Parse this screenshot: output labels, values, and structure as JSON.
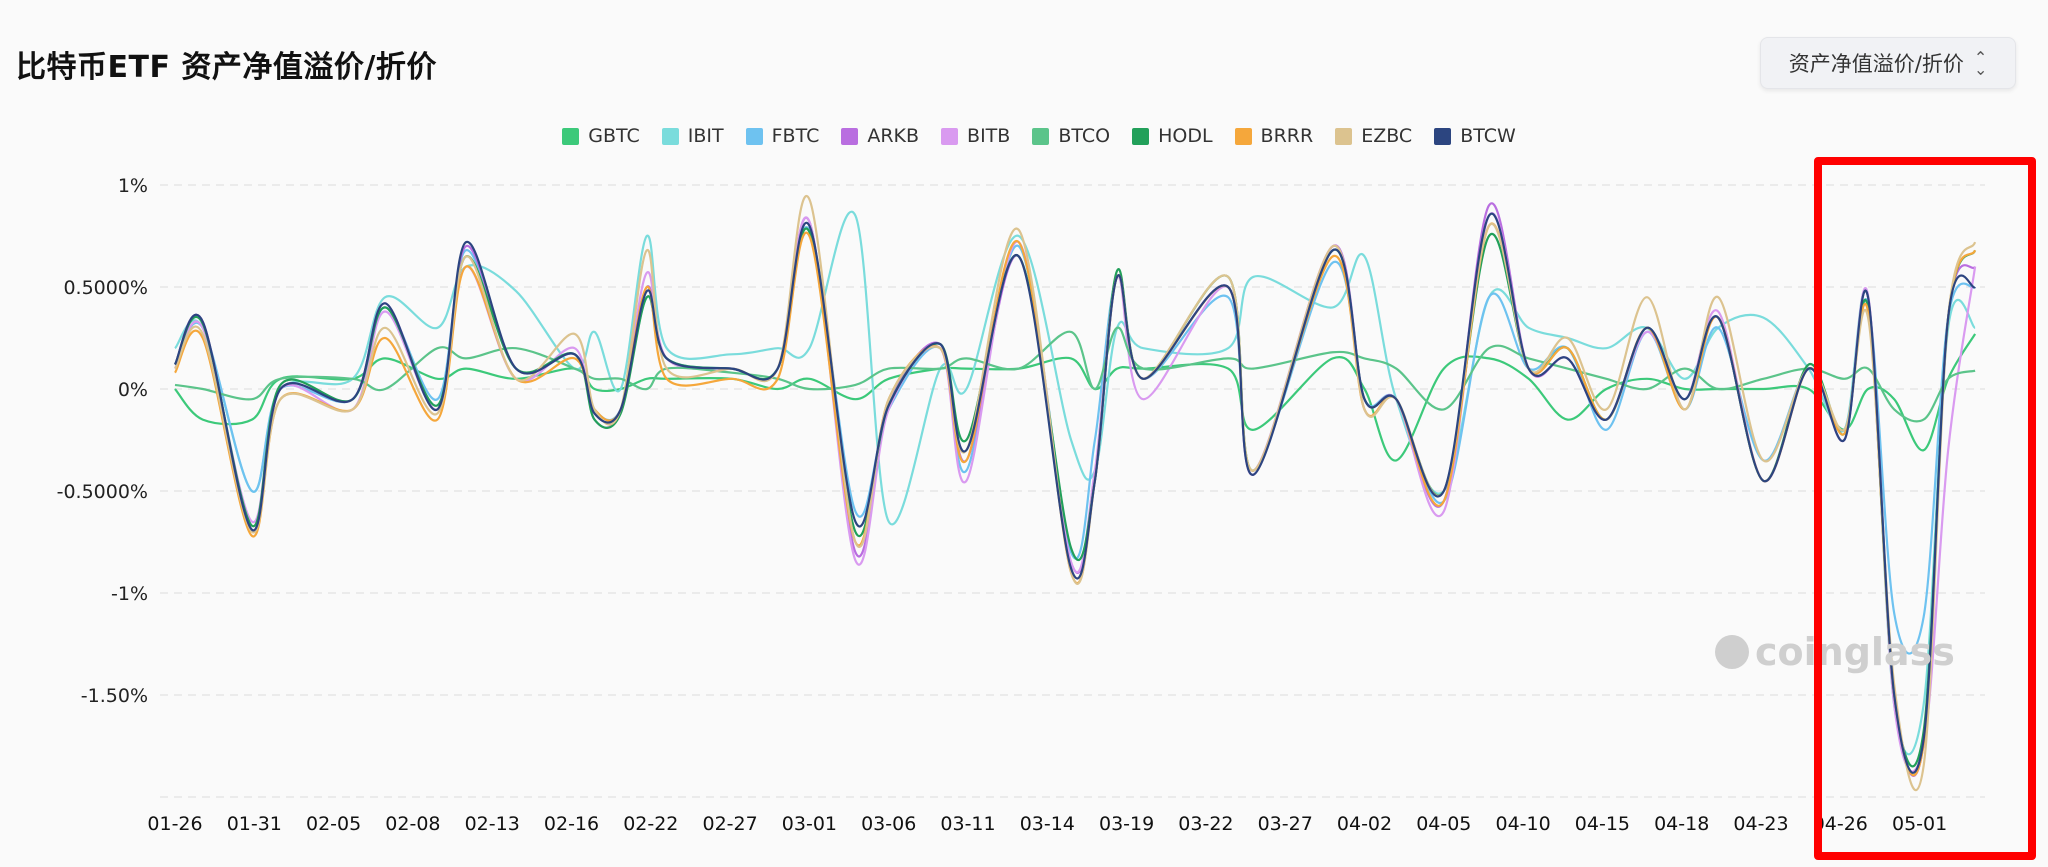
{
  "header": {
    "title": "比特币ETF 资产净值溢价/折价",
    "dropdown_label": "资产净值溢价/折价"
  },
  "watermark": "coinglass",
  "chart_data": {
    "type": "line",
    "title": "比特币ETF 资产净值溢价/折价",
    "xlabel": "",
    "ylabel": "",
    "ylim": [
      -2,
      1
    ],
    "y_ticks": [
      1,
      0.5,
      0,
      -0.5,
      -1,
      -1.5
    ],
    "y_tick_labels": [
      "1%",
      "0.5000%",
      "0%",
      "-0.5000%",
      "-1%",
      "-1.50%"
    ],
    "x_tick_labels": [
      "01-26",
      "01-31",
      "02-05",
      "02-08",
      "02-13",
      "02-16",
      "02-22",
      "02-27",
      "03-01",
      "03-06",
      "03-11",
      "03-14",
      "03-19",
      "03-22",
      "03-27",
      "04-02",
      "04-05",
      "04-10",
      "04-15",
      "04-18",
      "04-23",
      "04-26",
      "05-01"
    ],
    "grid": true,
    "legend_placement": "top-center",
    "x": [
      0,
      0.35,
      0.97,
      1.33,
      2.24,
      2.65,
      3.31,
      3.67,
      4.3,
      5.04,
      5.29,
      5.62,
      5.95,
      6.2,
      7.02,
      7.6,
      8.0,
      8.58,
      9.0,
      9.65,
      9.98,
      10.64,
      11.3,
      11.6,
      11.88,
      12.21,
      13.28,
      13.6,
      14.6,
      15.0,
      15.4,
      16.0,
      16.57,
      17.07,
      17.56,
      18.05,
      18.56,
      19.04,
      19.46,
      20.03,
      20.6,
      21.05,
      21.35,
      21.68,
      22.05,
      22.36,
      22.7
    ],
    "series": [
      {
        "name": "GBTC",
        "color": "#3cc97a",
        "values": [
          0.0,
          -0.15,
          -0.15,
          0.05,
          0.05,
          0.15,
          0.05,
          0.1,
          0.05,
          0.1,
          0.0,
          0.0,
          0.05,
          0.05,
          0.05,
          0.0,
          0.05,
          -0.05,
          0.05,
          0.1,
          0.1,
          0.1,
          0.15,
          0.0,
          0.1,
          0.1,
          0.1,
          -0.2,
          0.15,
          0.0,
          -0.35,
          0.1,
          0.15,
          0.05,
          -0.15,
          0.0,
          0.05,
          0.0,
          0.0,
          0.0,
          0.0,
          -0.2,
          0.0,
          -0.05,
          -0.3,
          0.05,
          0.27
        ]
      },
      {
        "name": "IBIT",
        "color": "#7adcdc",
        "values": [
          0.2,
          0.3,
          -0.5,
          0.0,
          0.05,
          0.45,
          0.3,
          0.6,
          0.48,
          0.1,
          0.28,
          0.0,
          0.75,
          0.2,
          0.17,
          0.2,
          0.2,
          0.85,
          -0.65,
          0.1,
          0.0,
          0.75,
          -0.25,
          -0.4,
          0.3,
          0.2,
          0.2,
          0.55,
          0.4,
          0.65,
          -0.05,
          -0.5,
          0.45,
          0.3,
          0.25,
          0.2,
          0.3,
          0.05,
          0.3,
          0.35,
          0.1,
          -0.2,
          0.45,
          -1.55,
          -1.55,
          0.3,
          0.3
        ]
      },
      {
        "name": "FBTC",
        "color": "#6ec2f0",
        "values": [
          0.12,
          0.3,
          -0.5,
          0.0,
          -0.05,
          0.4,
          -0.05,
          0.68,
          0.1,
          0.17,
          -0.1,
          -0.1,
          0.45,
          0.15,
          0.1,
          0.1,
          0.78,
          -0.6,
          -0.1,
          0.2,
          -0.4,
          0.7,
          -0.8,
          -0.25,
          0.55,
          0.05,
          0.45,
          -0.4,
          0.62,
          -0.05,
          -0.05,
          -0.55,
          0.45,
          0.1,
          0.2,
          -0.2,
          0.28,
          -0.1,
          0.3,
          -0.35,
          0.1,
          -0.2,
          0.42,
          -1.1,
          -1.12,
          0.35,
          0.5
        ]
      },
      {
        "name": "ARKB",
        "color": "#b96ee0",
        "values": [
          0.12,
          0.33,
          -0.69,
          0.0,
          -0.05,
          0.42,
          -0.1,
          0.7,
          0.1,
          0.17,
          -0.12,
          -0.1,
          0.5,
          0.15,
          0.1,
          0.1,
          0.82,
          -0.8,
          -0.08,
          0.22,
          -0.35,
          0.65,
          -0.85,
          -0.45,
          0.55,
          0.05,
          0.5,
          -0.42,
          0.7,
          -0.05,
          -0.05,
          -0.55,
          0.9,
          0.1,
          0.15,
          -0.15,
          0.3,
          -0.05,
          0.35,
          -0.45,
          0.1,
          -0.25,
          0.45,
          -1.5,
          -1.74,
          0.35,
          0.6
        ]
      },
      {
        "name": "BITB",
        "color": "#d99af0",
        "values": [
          0.1,
          0.3,
          -0.65,
          0.0,
          -0.1,
          0.38,
          -0.1,
          0.6,
          0.05,
          0.2,
          -0.15,
          -0.1,
          0.57,
          0.15,
          0.1,
          0.1,
          0.82,
          -0.84,
          -0.1,
          0.2,
          -0.45,
          0.72,
          -0.85,
          -0.4,
          0.55,
          -0.05,
          0.5,
          -0.4,
          0.7,
          -0.1,
          -0.05,
          -0.6,
          0.85,
          0.1,
          0.15,
          -0.15,
          0.28,
          -0.05,
          0.38,
          -0.45,
          0.1,
          -0.25,
          0.46,
          -1.55,
          -1.75,
          -0.3,
          0.6
        ]
      },
      {
        "name": "BTCO",
        "color": "#5bc48a",
        "values": [
          0.02,
          0.0,
          -0.05,
          0.05,
          0.05,
          0.0,
          0.2,
          0.15,
          0.2,
          0.1,
          0.05,
          0.05,
          0.0,
          0.1,
          0.08,
          0.05,
          0.0,
          0.02,
          0.1,
          0.1,
          0.15,
          0.1,
          0.28,
          0.0,
          0.3,
          0.1,
          0.15,
          0.1,
          0.18,
          0.15,
          0.1,
          -0.1,
          0.2,
          0.15,
          0.1,
          0.05,
          0.0,
          0.1,
          0.0,
          0.05,
          0.1,
          0.05,
          0.1,
          -0.1,
          -0.15,
          0.05,
          0.09
        ]
      },
      {
        "name": "HODL",
        "color": "#22a05a",
        "values": [
          0.12,
          0.32,
          -0.67,
          0.02,
          -0.05,
          0.4,
          -0.08,
          0.65,
          0.1,
          0.17,
          -0.15,
          -0.12,
          0.45,
          0.15,
          0.1,
          0.1,
          0.77,
          -0.7,
          -0.08,
          0.22,
          -0.25,
          0.65,
          -0.78,
          -0.45,
          0.58,
          0.05,
          0.55,
          -0.4,
          0.68,
          -0.05,
          -0.05,
          -0.5,
          0.75,
          0.1,
          0.2,
          -0.15,
          0.3,
          -0.05,
          0.35,
          -0.45,
          0.12,
          -0.22,
          0.4,
          -1.5,
          -1.68,
          0.35,
          0.68
        ]
      },
      {
        "name": "BRRR",
        "color": "#f5a73b",
        "values": [
          0.08,
          0.25,
          -0.72,
          -0.05,
          -0.1,
          0.25,
          -0.15,
          0.6,
          0.05,
          0.15,
          -0.1,
          -0.1,
          0.5,
          0.05,
          0.05,
          0.05,
          0.75,
          -0.75,
          -0.05,
          0.2,
          -0.35,
          0.72,
          -0.9,
          -0.45,
          0.55,
          0.05,
          0.5,
          -0.4,
          0.65,
          -0.1,
          -0.05,
          -0.55,
          0.8,
          0.1,
          0.2,
          -0.15,
          0.3,
          -0.1,
          0.35,
          -0.45,
          0.1,
          -0.22,
          0.38,
          -1.5,
          -1.74,
          0.35,
          0.68
        ]
      },
      {
        "name": "EZBC",
        "color": "#dcc38f",
        "values": [
          0.1,
          0.27,
          -0.7,
          -0.05,
          -0.1,
          0.3,
          -0.12,
          0.65,
          0.05,
          0.27,
          -0.1,
          -0.1,
          0.68,
          0.1,
          0.1,
          0.1,
          0.93,
          -0.75,
          -0.05,
          0.2,
          -0.3,
          0.78,
          -0.9,
          -0.45,
          0.55,
          0.05,
          0.55,
          -0.4,
          0.7,
          -0.1,
          -0.05,
          -0.5,
          0.8,
          0.1,
          0.25,
          -0.1,
          0.45,
          -0.1,
          0.45,
          -0.35,
          0.1,
          -0.2,
          0.35,
          -1.45,
          -1.85,
          0.35,
          0.72
        ]
      },
      {
        "name": "BTCW",
        "color": "#2c4580",
        "values": [
          0.12,
          0.33,
          -0.69,
          0.0,
          -0.05,
          0.42,
          -0.1,
          0.72,
          0.1,
          0.17,
          -0.12,
          -0.1,
          0.48,
          0.15,
          0.1,
          0.1,
          0.8,
          -0.65,
          -0.08,
          0.22,
          -0.3,
          0.65,
          -0.88,
          -0.45,
          0.55,
          0.05,
          0.5,
          -0.42,
          0.68,
          -0.05,
          -0.05,
          -0.5,
          0.85,
          0.1,
          0.15,
          -0.15,
          0.3,
          -0.05,
          0.35,
          -0.45,
          0.1,
          -0.25,
          0.45,
          -1.5,
          -1.72,
          0.35,
          0.5
        ]
      }
    ]
  }
}
